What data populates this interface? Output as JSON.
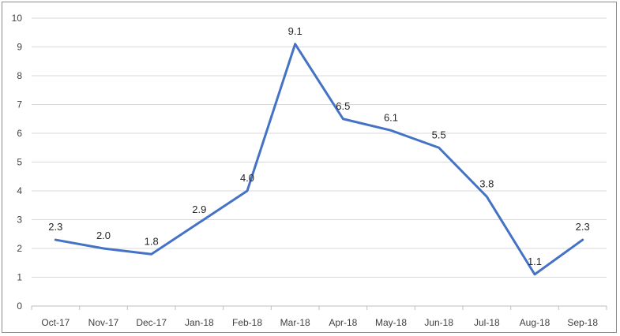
{
  "chart_data": {
    "type": "line",
    "title": "",
    "xlabel": "",
    "ylabel": "",
    "categories": [
      "Oct-17",
      "Nov-17",
      "Dec-17",
      "Jan-18",
      "Feb-18",
      "Mar-18",
      "Apr-18",
      "May-18",
      "Jun-18",
      "Jul-18",
      "Aug-18",
      "Sep-18"
    ],
    "series": [
      {
        "values": [
          2.3,
          2.0,
          1.8,
          2.9,
          4.0,
          9.1,
          6.5,
          6.1,
          5.5,
          3.8,
          1.1,
          2.3
        ],
        "data_labels": [
          "2.3",
          "2.0",
          "1.8",
          "2.9",
          "4.0",
          "9.1",
          "6.5",
          "6.1",
          "5.5",
          "3.8",
          "1.1",
          "2.3"
        ],
        "color": "#4472c4"
      }
    ],
    "ylim": [
      0,
      10
    ],
    "yticks": [
      "0",
      "1",
      "2",
      "3",
      "4",
      "5",
      "6",
      "7",
      "8",
      "9",
      "10"
    ],
    "grid": true,
    "legend": "none"
  },
  "colors": {
    "line": "#4472c4",
    "grid": "#d9d9d9",
    "axis": "#bfbfbf",
    "frame": "#8c8c8c"
  }
}
